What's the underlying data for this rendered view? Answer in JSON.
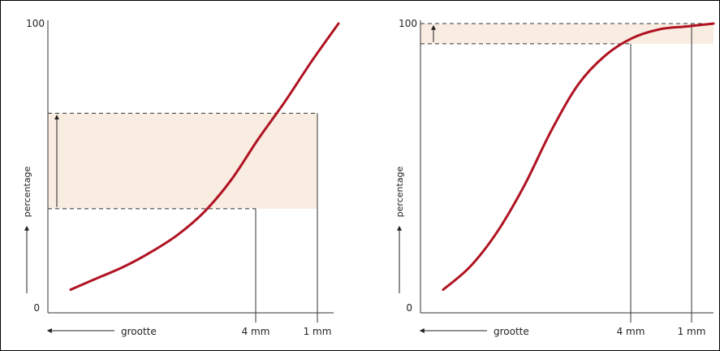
{
  "colors": {
    "curve": "#b01322",
    "band": "#f9ece1",
    "axis": "#333333",
    "dash": "#333333"
  },
  "chart_data": [
    {
      "type": "line",
      "title": "",
      "xlabel": "grootte",
      "ylabel": "percentage",
      "ytick_labels": [
        "0",
        "100"
      ],
      "xtick_labels": [
        "4 mm",
        "1 mm"
      ],
      "x_direction": "size decreasing to the right",
      "ylim": [
        0,
        100
      ],
      "series": [
        {
          "x": [
            0.0,
            0.1,
            0.2,
            0.3,
            0.4,
            0.5,
            0.6,
            0.7,
            0.8,
            0.9,
            1.0
          ],
          "y": [
            8,
            12,
            16,
            21,
            27,
            35,
            46,
            60,
            73,
            87,
            100
          ]
        }
      ],
      "markers": [
        {
          "label": "4 mm",
          "y": 36
        },
        {
          "label": "1 mm",
          "y": 69
        }
      ],
      "band": {
        "from": 36,
        "to": 69
      },
      "grid": false
    },
    {
      "type": "line",
      "title": "",
      "xlabel": "grootte",
      "ylabel": "percentage",
      "ytick_labels": [
        "0",
        "100"
      ],
      "xtick_labels": [
        "4 mm",
        "1 mm"
      ],
      "x_direction": "size decreasing to the right",
      "ylim": [
        0,
        100
      ],
      "series": [
        {
          "x": [
            0.0,
            0.1,
            0.2,
            0.3,
            0.4,
            0.5,
            0.6,
            0.7,
            0.8,
            0.9,
            1.0
          ],
          "y": [
            8,
            16,
            28,
            44,
            63,
            79,
            89,
            95,
            98,
            99,
            100
          ]
        }
      ],
      "markers": [
        {
          "label": "4 mm",
          "y": 93
        },
        {
          "label": "1 mm",
          "y": 100
        }
      ],
      "band": {
        "from": 93,
        "to": 100
      },
      "grid": false
    }
  ]
}
